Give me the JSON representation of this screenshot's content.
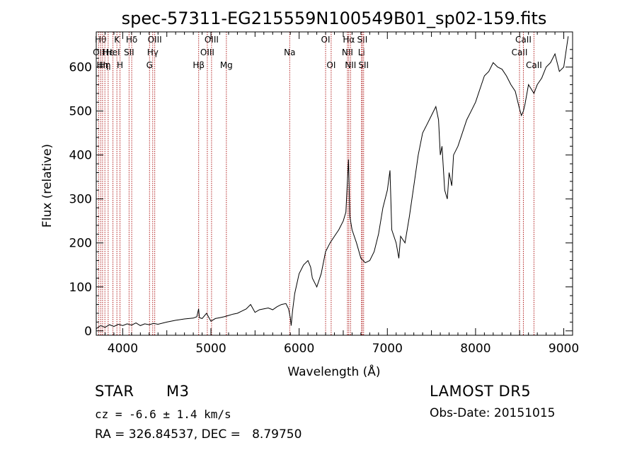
{
  "chart_data": {
    "type": "line",
    "title": "spec-57311-EG215559N100549B01_sp02-159.fits",
    "xlabel": "Wavelength (Å)",
    "ylabel": "Flux (relative)",
    "xlim": [
      3700,
      9100
    ],
    "ylim": [
      -10,
      680
    ],
    "x_ticks": [
      4000,
      5000,
      6000,
      7000,
      8000,
      9000
    ],
    "y_ticks": [
      0,
      100,
      200,
      300,
      400,
      500,
      600
    ],
    "line_color": "#000000",
    "marker_color": "#b22222",
    "series": [
      {
        "points": [
          [
            3700,
            5
          ],
          [
            3750,
            12
          ],
          [
            3800,
            8
          ],
          [
            3850,
            14
          ],
          [
            3900,
            10
          ],
          [
            3950,
            15
          ],
          [
            4000,
            12
          ],
          [
            4050,
            16
          ],
          [
            4100,
            13
          ],
          [
            4150,
            18
          ],
          [
            4200,
            12
          ],
          [
            4250,
            16
          ],
          [
            4300,
            14
          ],
          [
            4350,
            17
          ],
          [
            4400,
            15
          ],
          [
            4500,
            20
          ],
          [
            4600,
            24
          ],
          [
            4700,
            27
          ],
          [
            4800,
            29
          ],
          [
            4840,
            32
          ],
          [
            4860,
            50
          ],
          [
            4870,
            30
          ],
          [
            4900,
            28
          ],
          [
            4950,
            40
          ],
          [
            5000,
            22
          ],
          [
            5050,
            28
          ],
          [
            5100,
            30
          ],
          [
            5150,
            32
          ],
          [
            5200,
            35
          ],
          [
            5250,
            38
          ],
          [
            5300,
            40
          ],
          [
            5350,
            45
          ],
          [
            5400,
            50
          ],
          [
            5450,
            60
          ],
          [
            5500,
            42
          ],
          [
            5550,
            48
          ],
          [
            5600,
            50
          ],
          [
            5650,
            52
          ],
          [
            5700,
            48
          ],
          [
            5750,
            55
          ],
          [
            5800,
            60
          ],
          [
            5850,
            62
          ],
          [
            5880,
            50
          ],
          [
            5900,
            30
          ],
          [
            5910,
            12
          ],
          [
            5925,
            45
          ],
          [
            5950,
            85
          ],
          [
            6000,
            130
          ],
          [
            6050,
            150
          ],
          [
            6100,
            160
          ],
          [
            6130,
            145
          ],
          [
            6150,
            120
          ],
          [
            6200,
            100
          ],
          [
            6250,
            130
          ],
          [
            6300,
            180
          ],
          [
            6350,
            200
          ],
          [
            6400,
            215
          ],
          [
            6450,
            230
          ],
          [
            6500,
            250
          ],
          [
            6530,
            270
          ],
          [
            6560,
            390
          ],
          [
            6575,
            260
          ],
          [
            6600,
            230
          ],
          [
            6650,
            200
          ],
          [
            6700,
            165
          ],
          [
            6750,
            155
          ],
          [
            6800,
            160
          ],
          [
            6850,
            180
          ],
          [
            6900,
            220
          ],
          [
            6950,
            280
          ],
          [
            7000,
            320
          ],
          [
            7030,
            365
          ],
          [
            7050,
            230
          ],
          [
            7100,
            200
          ],
          [
            7130,
            165
          ],
          [
            7150,
            215
          ],
          [
            7200,
            200
          ],
          [
            7250,
            260
          ],
          [
            7300,
            330
          ],
          [
            7350,
            400
          ],
          [
            7400,
            450
          ],
          [
            7450,
            470
          ],
          [
            7500,
            490
          ],
          [
            7550,
            510
          ],
          [
            7580,
            480
          ],
          [
            7600,
            400
          ],
          [
            7620,
            420
          ],
          [
            7650,
            320
          ],
          [
            7680,
            300
          ],
          [
            7700,
            360
          ],
          [
            7730,
            330
          ],
          [
            7750,
            400
          ],
          [
            7800,
            420
          ],
          [
            7850,
            450
          ],
          [
            7900,
            480
          ],
          [
            7950,
            500
          ],
          [
            8000,
            520
          ],
          [
            8050,
            550
          ],
          [
            8100,
            580
          ],
          [
            8150,
            590
          ],
          [
            8200,
            610
          ],
          [
            8250,
            600
          ],
          [
            8300,
            595
          ],
          [
            8350,
            580
          ],
          [
            8400,
            560
          ],
          [
            8450,
            545
          ],
          [
            8498,
            505
          ],
          [
            8520,
            490
          ],
          [
            8542,
            500
          ],
          [
            8560,
            515
          ],
          [
            8600,
            560
          ],
          [
            8662,
            540
          ],
          [
            8700,
            560
          ],
          [
            8750,
            575
          ],
          [
            8800,
            600
          ],
          [
            8850,
            610
          ],
          [
            8900,
            630
          ],
          [
            8950,
            590
          ],
          [
            9000,
            600
          ],
          [
            9050,
            670
          ]
        ]
      }
    ],
    "line_markers": [
      {
        "x": 3727,
        "label": "OII",
        "row": 1
      },
      {
        "x": 3750,
        "label": "Hθ",
        "row": 0
      },
      {
        "x": 3771,
        "label": "Hη",
        "row": 2
      },
      {
        "x": 3798,
        "label": "Hη",
        "row": 2
      },
      {
        "x": 3835,
        "label": "Hε",
        "row": 1
      },
      {
        "x": 3889,
        "label": "HeI",
        "row": 1
      },
      {
        "x": 3934,
        "label": "K",
        "row": 0
      },
      {
        "x": 3969,
        "label": "H",
        "row": 2
      },
      {
        "x": 4072,
        "label": "SII",
        "row": 1
      },
      {
        "x": 4102,
        "label": "Hδ",
        "row": 0
      },
      {
        "x": 4304,
        "label": "G",
        "row": 2
      },
      {
        "x": 4340,
        "label": "Hγ",
        "row": 1
      },
      {
        "x": 4363,
        "label": "OIII",
        "row": 0
      },
      {
        "x": 4861,
        "label": "Hβ",
        "row": 2
      },
      {
        "x": 4959,
        "label": "OIII",
        "row": 1
      },
      {
        "x": 5007,
        "label": "OIII",
        "row": 0
      },
      {
        "x": 5175,
        "label": "Mg",
        "row": 2
      },
      {
        "x": 5893,
        "label": "Na",
        "row": 1
      },
      {
        "x": 6300,
        "label": "OI",
        "row": 0
      },
      {
        "x": 6363,
        "label": "OI",
        "row": 2
      },
      {
        "x": 6548,
        "label": "NII",
        "row": 1
      },
      {
        "x": 6563,
        "label": "Hα",
        "row": 0
      },
      {
        "x": 6583,
        "label": "NII",
        "row": 2
      },
      {
        "x": 6707,
        "label": "Li",
        "row": 1
      },
      {
        "x": 6716,
        "label": "SII",
        "row": 0
      },
      {
        "x": 6731,
        "label": "SII",
        "row": 2
      },
      {
        "x": 8498,
        "label": "CaII",
        "row": 1
      },
      {
        "x": 8542,
        "label": "CaII",
        "row": 0
      },
      {
        "x": 8662,
        "label": "CaII",
        "row": 2
      }
    ]
  },
  "info": {
    "object_class": "STAR",
    "subclass": "M3",
    "survey": "LAMOST DR5",
    "cz": "cz = -6.6 ± 1.4 km/s",
    "obs_date": "Obs-Date: 20151015",
    "coords": "RA = 326.84537, DEC =   8.79750"
  }
}
